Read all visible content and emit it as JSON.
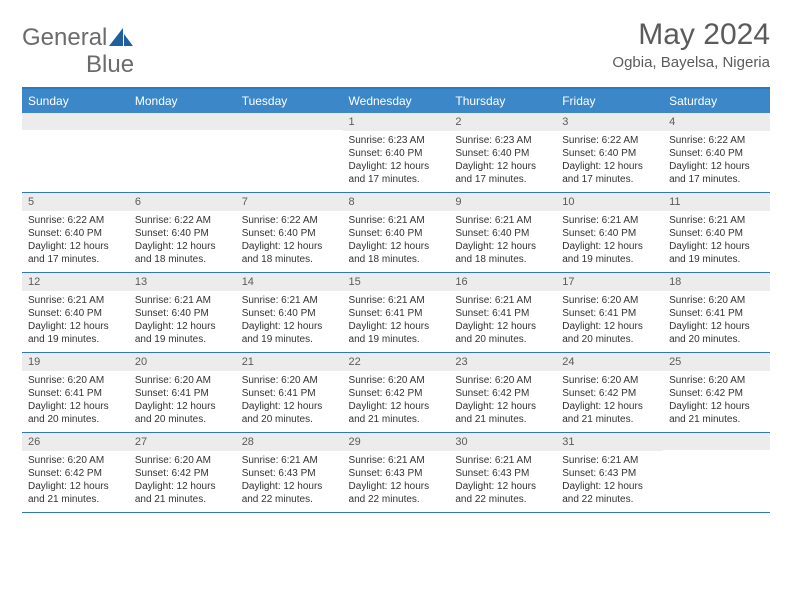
{
  "logo": {
    "word1": "General",
    "word2": "Blue"
  },
  "title": "May 2024",
  "subtitle": "Ogbia, Bayelsa, Nigeria",
  "colors": {
    "header_bg": "#3b87c8",
    "border": "#2e78bf",
    "daynum_bg": "#ececec",
    "text_muted": "#5b5b5b",
    "text": "#333333",
    "logo_text": "#6b6b6b",
    "logo_shape": "#1e5fa0"
  },
  "days_of_week": [
    "Sunday",
    "Monday",
    "Tuesday",
    "Wednesday",
    "Thursday",
    "Friday",
    "Saturday"
  ],
  "weeks": [
    [
      {
        "n": "",
        "body": ""
      },
      {
        "n": "",
        "body": ""
      },
      {
        "n": "",
        "body": ""
      },
      {
        "n": "1",
        "body": "Sunrise: 6:23 AM\nSunset: 6:40 PM\nDaylight: 12 hours and 17 minutes."
      },
      {
        "n": "2",
        "body": "Sunrise: 6:23 AM\nSunset: 6:40 PM\nDaylight: 12 hours and 17 minutes."
      },
      {
        "n": "3",
        "body": "Sunrise: 6:22 AM\nSunset: 6:40 PM\nDaylight: 12 hours and 17 minutes."
      },
      {
        "n": "4",
        "body": "Sunrise: 6:22 AM\nSunset: 6:40 PM\nDaylight: 12 hours and 17 minutes."
      }
    ],
    [
      {
        "n": "5",
        "body": "Sunrise: 6:22 AM\nSunset: 6:40 PM\nDaylight: 12 hours and 17 minutes."
      },
      {
        "n": "6",
        "body": "Sunrise: 6:22 AM\nSunset: 6:40 PM\nDaylight: 12 hours and 18 minutes."
      },
      {
        "n": "7",
        "body": "Sunrise: 6:22 AM\nSunset: 6:40 PM\nDaylight: 12 hours and 18 minutes."
      },
      {
        "n": "8",
        "body": "Sunrise: 6:21 AM\nSunset: 6:40 PM\nDaylight: 12 hours and 18 minutes."
      },
      {
        "n": "9",
        "body": "Sunrise: 6:21 AM\nSunset: 6:40 PM\nDaylight: 12 hours and 18 minutes."
      },
      {
        "n": "10",
        "body": "Sunrise: 6:21 AM\nSunset: 6:40 PM\nDaylight: 12 hours and 19 minutes."
      },
      {
        "n": "11",
        "body": "Sunrise: 6:21 AM\nSunset: 6:40 PM\nDaylight: 12 hours and 19 minutes."
      }
    ],
    [
      {
        "n": "12",
        "body": "Sunrise: 6:21 AM\nSunset: 6:40 PM\nDaylight: 12 hours and 19 minutes."
      },
      {
        "n": "13",
        "body": "Sunrise: 6:21 AM\nSunset: 6:40 PM\nDaylight: 12 hours and 19 minutes."
      },
      {
        "n": "14",
        "body": "Sunrise: 6:21 AM\nSunset: 6:40 PM\nDaylight: 12 hours and 19 minutes."
      },
      {
        "n": "15",
        "body": "Sunrise: 6:21 AM\nSunset: 6:41 PM\nDaylight: 12 hours and 19 minutes."
      },
      {
        "n": "16",
        "body": "Sunrise: 6:21 AM\nSunset: 6:41 PM\nDaylight: 12 hours and 20 minutes."
      },
      {
        "n": "17",
        "body": "Sunrise: 6:20 AM\nSunset: 6:41 PM\nDaylight: 12 hours and 20 minutes."
      },
      {
        "n": "18",
        "body": "Sunrise: 6:20 AM\nSunset: 6:41 PM\nDaylight: 12 hours and 20 minutes."
      }
    ],
    [
      {
        "n": "19",
        "body": "Sunrise: 6:20 AM\nSunset: 6:41 PM\nDaylight: 12 hours and 20 minutes."
      },
      {
        "n": "20",
        "body": "Sunrise: 6:20 AM\nSunset: 6:41 PM\nDaylight: 12 hours and 20 minutes."
      },
      {
        "n": "21",
        "body": "Sunrise: 6:20 AM\nSunset: 6:41 PM\nDaylight: 12 hours and 20 minutes."
      },
      {
        "n": "22",
        "body": "Sunrise: 6:20 AM\nSunset: 6:42 PM\nDaylight: 12 hours and 21 minutes."
      },
      {
        "n": "23",
        "body": "Sunrise: 6:20 AM\nSunset: 6:42 PM\nDaylight: 12 hours and 21 minutes."
      },
      {
        "n": "24",
        "body": "Sunrise: 6:20 AM\nSunset: 6:42 PM\nDaylight: 12 hours and 21 minutes."
      },
      {
        "n": "25",
        "body": "Sunrise: 6:20 AM\nSunset: 6:42 PM\nDaylight: 12 hours and 21 minutes."
      }
    ],
    [
      {
        "n": "26",
        "body": "Sunrise: 6:20 AM\nSunset: 6:42 PM\nDaylight: 12 hours and 21 minutes."
      },
      {
        "n": "27",
        "body": "Sunrise: 6:20 AM\nSunset: 6:42 PM\nDaylight: 12 hours and 21 minutes."
      },
      {
        "n": "28",
        "body": "Sunrise: 6:21 AM\nSunset: 6:43 PM\nDaylight: 12 hours and 22 minutes."
      },
      {
        "n": "29",
        "body": "Sunrise: 6:21 AM\nSunset: 6:43 PM\nDaylight: 12 hours and 22 minutes."
      },
      {
        "n": "30",
        "body": "Sunrise: 6:21 AM\nSunset: 6:43 PM\nDaylight: 12 hours and 22 minutes."
      },
      {
        "n": "31",
        "body": "Sunrise: 6:21 AM\nSunset: 6:43 PM\nDaylight: 12 hours and 22 minutes."
      },
      {
        "n": "",
        "body": ""
      }
    ]
  ]
}
